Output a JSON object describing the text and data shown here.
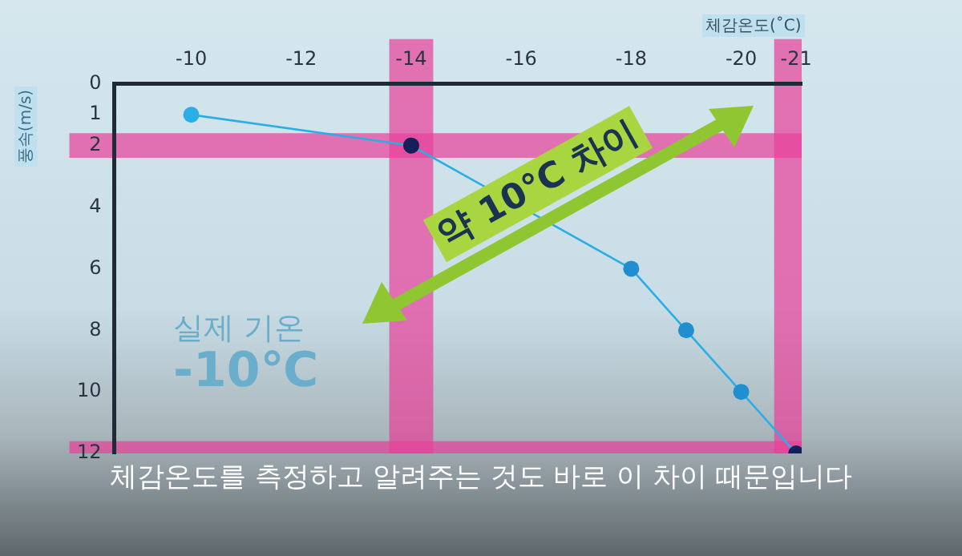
{
  "chart_data": {
    "type": "line",
    "xlabel": "체감온도(˚C)",
    "ylabel": "풍속(m/s)",
    "x": [
      -10,
      -14,
      -18,
      -19,
      -20,
      -21
    ],
    "series": [
      {
        "color": "#2aaee6",
        "colors": [
          "#2aaee6",
          "#14205a",
          "#1f8fd0",
          "#1f8fd0",
          "#1f8fd0",
          "#14205a"
        ],
        "values": [
          1,
          2,
          6,
          8,
          10,
          12
        ]
      }
    ],
    "xlim": [
      -8.6,
      -21.1
    ],
    "xticks": [
      -10,
      -12,
      -14,
      -16,
      -18,
      -20,
      -21
    ],
    "ylim": [
      12,
      0
    ],
    "yticks": [
      0,
      1,
      2,
      4,
      6,
      8,
      10,
      12
    ],
    "bands": [
      {
        "axis": "x",
        "from": -13.6,
        "to": -14.4,
        "color": "#e8409a"
      },
      {
        "axis": "y",
        "from": 1.6,
        "to": 2.4,
        "color": "#e8409a"
      },
      {
        "axis": "x",
        "from": -20.6,
        "to": -21.1,
        "color": "#e8409a"
      },
      {
        "axis": "y",
        "from": 11.6,
        "to": 12,
        "color": "#e8409a"
      }
    ],
    "annotations": [
      "약 10℃ 차이",
      "실제 기온",
      "-10℃",
      "체감온도를 측정하고 알려주는 것도 바로 이 차이 때문입니다"
    ],
    "grid": false,
    "marker": "circle",
    "line_style": "solid",
    "legend": false
  }
}
